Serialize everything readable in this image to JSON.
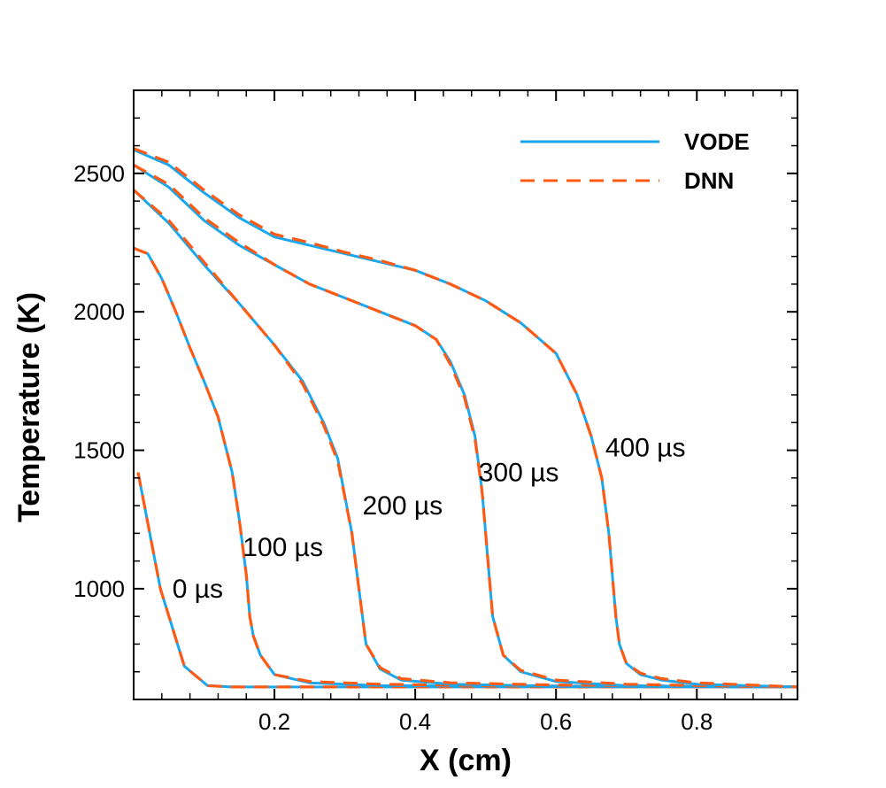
{
  "chart_data": {
    "type": "line",
    "xlabel": "X (cm)",
    "ylabel": "Temperature (K)",
    "xlim": [
      0.0,
      0.943
    ],
    "ylim": [
      600,
      2800
    ],
    "xticks": [
      0.2,
      0.4,
      0.6,
      0.8
    ],
    "xtick_labels": [
      "0.2",
      "0.4",
      "0.6",
      "0.8"
    ],
    "yticks": [
      1000,
      1500,
      2000,
      2500
    ],
    "ytick_labels": [
      "1000",
      "1500",
      "2000",
      "2500"
    ],
    "grid": false,
    "legend_position": "top-right",
    "colors": {
      "VODE": "#1aa7ec",
      "DNN": "#ff5a14"
    },
    "series": [
      {
        "name": "VODE",
        "style": "solid",
        "time": "0 µs",
        "x": [
          0.0063,
          0.038,
          0.072,
          0.105,
          0.14,
          0.2,
          0.3,
          0.4,
          0.5,
          0.6,
          0.7,
          0.8,
          0.943
        ],
        "y": [
          1420,
          1000,
          720,
          650,
          645,
          645,
          645,
          645,
          645,
          645,
          645,
          645,
          645
        ]
      },
      {
        "name": "DNN",
        "style": "dashed",
        "time": "0 µs",
        "x": [
          0.0063,
          0.038,
          0.072,
          0.105,
          0.14,
          0.2,
          0.3,
          0.4,
          0.5,
          0.6,
          0.7,
          0.8,
          0.943
        ],
        "y": [
          1420,
          1000,
          720,
          650,
          645,
          645,
          645,
          645,
          645,
          645,
          645,
          645,
          645
        ]
      },
      {
        "name": "VODE",
        "style": "solid",
        "time": "100 µs",
        "x": [
          0.0,
          0.02,
          0.04,
          0.06,
          0.08,
          0.1,
          0.12,
          0.14,
          0.15,
          0.155,
          0.16,
          0.165,
          0.17,
          0.18,
          0.2,
          0.25,
          0.35,
          0.5,
          0.7,
          0.943
        ],
        "y": [
          2230,
          2210,
          2120,
          2000,
          1870,
          1750,
          1620,
          1420,
          1250,
          1150,
          1050,
          900,
          830,
          760,
          690,
          660,
          650,
          648,
          646,
          645
        ]
      },
      {
        "name": "DNN",
        "style": "dashed",
        "time": "100 µs",
        "x": [
          0.0,
          0.02,
          0.04,
          0.06,
          0.08,
          0.1,
          0.12,
          0.14,
          0.15,
          0.155,
          0.16,
          0.165,
          0.17,
          0.18,
          0.2,
          0.25,
          0.35,
          0.5,
          0.7,
          0.943
        ],
        "y": [
          2230,
          2210,
          2120,
          2000,
          1870,
          1750,
          1620,
          1420,
          1250,
          1150,
          1050,
          900,
          830,
          760,
          690,
          665,
          655,
          650,
          647,
          645
        ]
      },
      {
        "name": "VODE",
        "style": "solid",
        "time": "200 µs",
        "x": [
          0.0,
          0.05,
          0.1,
          0.15,
          0.2,
          0.24,
          0.27,
          0.29,
          0.31,
          0.315,
          0.32,
          0.325,
          0.33,
          0.35,
          0.38,
          0.45,
          0.6,
          0.8,
          0.943
        ],
        "y": [
          2440,
          2320,
          2170,
          2030,
          1880,
          1750,
          1600,
          1470,
          1200,
          1100,
          1000,
          900,
          800,
          710,
          670,
          655,
          648,
          646,
          645
        ]
      },
      {
        "name": "DNN",
        "style": "dashed",
        "time": "200 µs",
        "x": [
          0.0,
          0.05,
          0.1,
          0.15,
          0.2,
          0.24,
          0.27,
          0.29,
          0.31,
          0.315,
          0.32,
          0.325,
          0.33,
          0.35,
          0.38,
          0.45,
          0.6,
          0.8,
          0.943
        ],
        "y": [
          2440,
          2330,
          2180,
          2030,
          1880,
          1740,
          1590,
          1460,
          1200,
          1100,
          1000,
          900,
          800,
          715,
          675,
          660,
          652,
          648,
          645
        ]
      },
      {
        "name": "VODE",
        "style": "solid",
        "time": "300 µs",
        "x": [
          0.0,
          0.05,
          0.1,
          0.15,
          0.2,
          0.25,
          0.3,
          0.35,
          0.4,
          0.43,
          0.45,
          0.47,
          0.485,
          0.495,
          0.5,
          0.505,
          0.51,
          0.525,
          0.55,
          0.6,
          0.7,
          0.85,
          0.943
        ],
        "y": [
          2530,
          2450,
          2330,
          2240,
          2170,
          2100,
          2050,
          2000,
          1950,
          1900,
          1820,
          1700,
          1550,
          1350,
          1200,
          1050,
          900,
          760,
          700,
          665,
          650,
          646,
          645
        ]
      },
      {
        "name": "DNN",
        "style": "dashed",
        "time": "300 µs",
        "x": [
          0.0,
          0.05,
          0.1,
          0.15,
          0.2,
          0.25,
          0.3,
          0.35,
          0.4,
          0.43,
          0.45,
          0.47,
          0.485,
          0.495,
          0.5,
          0.505,
          0.51,
          0.525,
          0.55,
          0.6,
          0.7,
          0.85,
          0.943
        ],
        "y": [
          2530,
          2460,
          2340,
          2250,
          2170,
          2100,
          2050,
          2000,
          1950,
          1900,
          1810,
          1690,
          1540,
          1350,
          1200,
          1050,
          900,
          760,
          705,
          670,
          655,
          648,
          645
        ]
      },
      {
        "name": "VODE",
        "style": "solid",
        "time": "400 µs",
        "x": [
          0.0,
          0.05,
          0.1,
          0.15,
          0.2,
          0.25,
          0.3,
          0.35,
          0.4,
          0.45,
          0.5,
          0.55,
          0.6,
          0.63,
          0.65,
          0.665,
          0.675,
          0.68,
          0.685,
          0.69,
          0.7,
          0.72,
          0.75,
          0.8,
          0.943
        ],
        "y": [
          2585,
          2530,
          2430,
          2340,
          2270,
          2240,
          2210,
          2180,
          2150,
          2100,
          2040,
          1960,
          1850,
          1700,
          1550,
          1400,
          1200,
          1050,
          900,
          800,
          730,
          690,
          670,
          655,
          645
        ]
      },
      {
        "name": "DNN",
        "style": "dashed",
        "time": "400 µs",
        "x": [
          0.0,
          0.05,
          0.1,
          0.15,
          0.2,
          0.25,
          0.3,
          0.35,
          0.4,
          0.45,
          0.5,
          0.55,
          0.6,
          0.63,
          0.65,
          0.665,
          0.675,
          0.68,
          0.685,
          0.69,
          0.7,
          0.72,
          0.75,
          0.8,
          0.943
        ],
        "y": [
          2590,
          2540,
          2440,
          2350,
          2280,
          2250,
          2215,
          2185,
          2150,
          2100,
          2040,
          1960,
          1850,
          1700,
          1550,
          1400,
          1200,
          1050,
          900,
          800,
          730,
          695,
          675,
          660,
          645
        ]
      }
    ],
    "annotations": [
      {
        "text": "0 µs",
        "x": 0.055,
        "y": 1000
      },
      {
        "text": "100 µs",
        "x": 0.155,
        "y": 1150
      },
      {
        "text": "200 µs",
        "x": 0.325,
        "y": 1300
      },
      {
        "text": "300 µs",
        "x": 0.49,
        "y": 1420
      },
      {
        "text": "400 µs",
        "x": 0.67,
        "y": 1510
      }
    ],
    "legend": [
      {
        "label": "VODE",
        "style": "solid"
      },
      {
        "label": "DNN",
        "style": "dashed"
      }
    ]
  }
}
